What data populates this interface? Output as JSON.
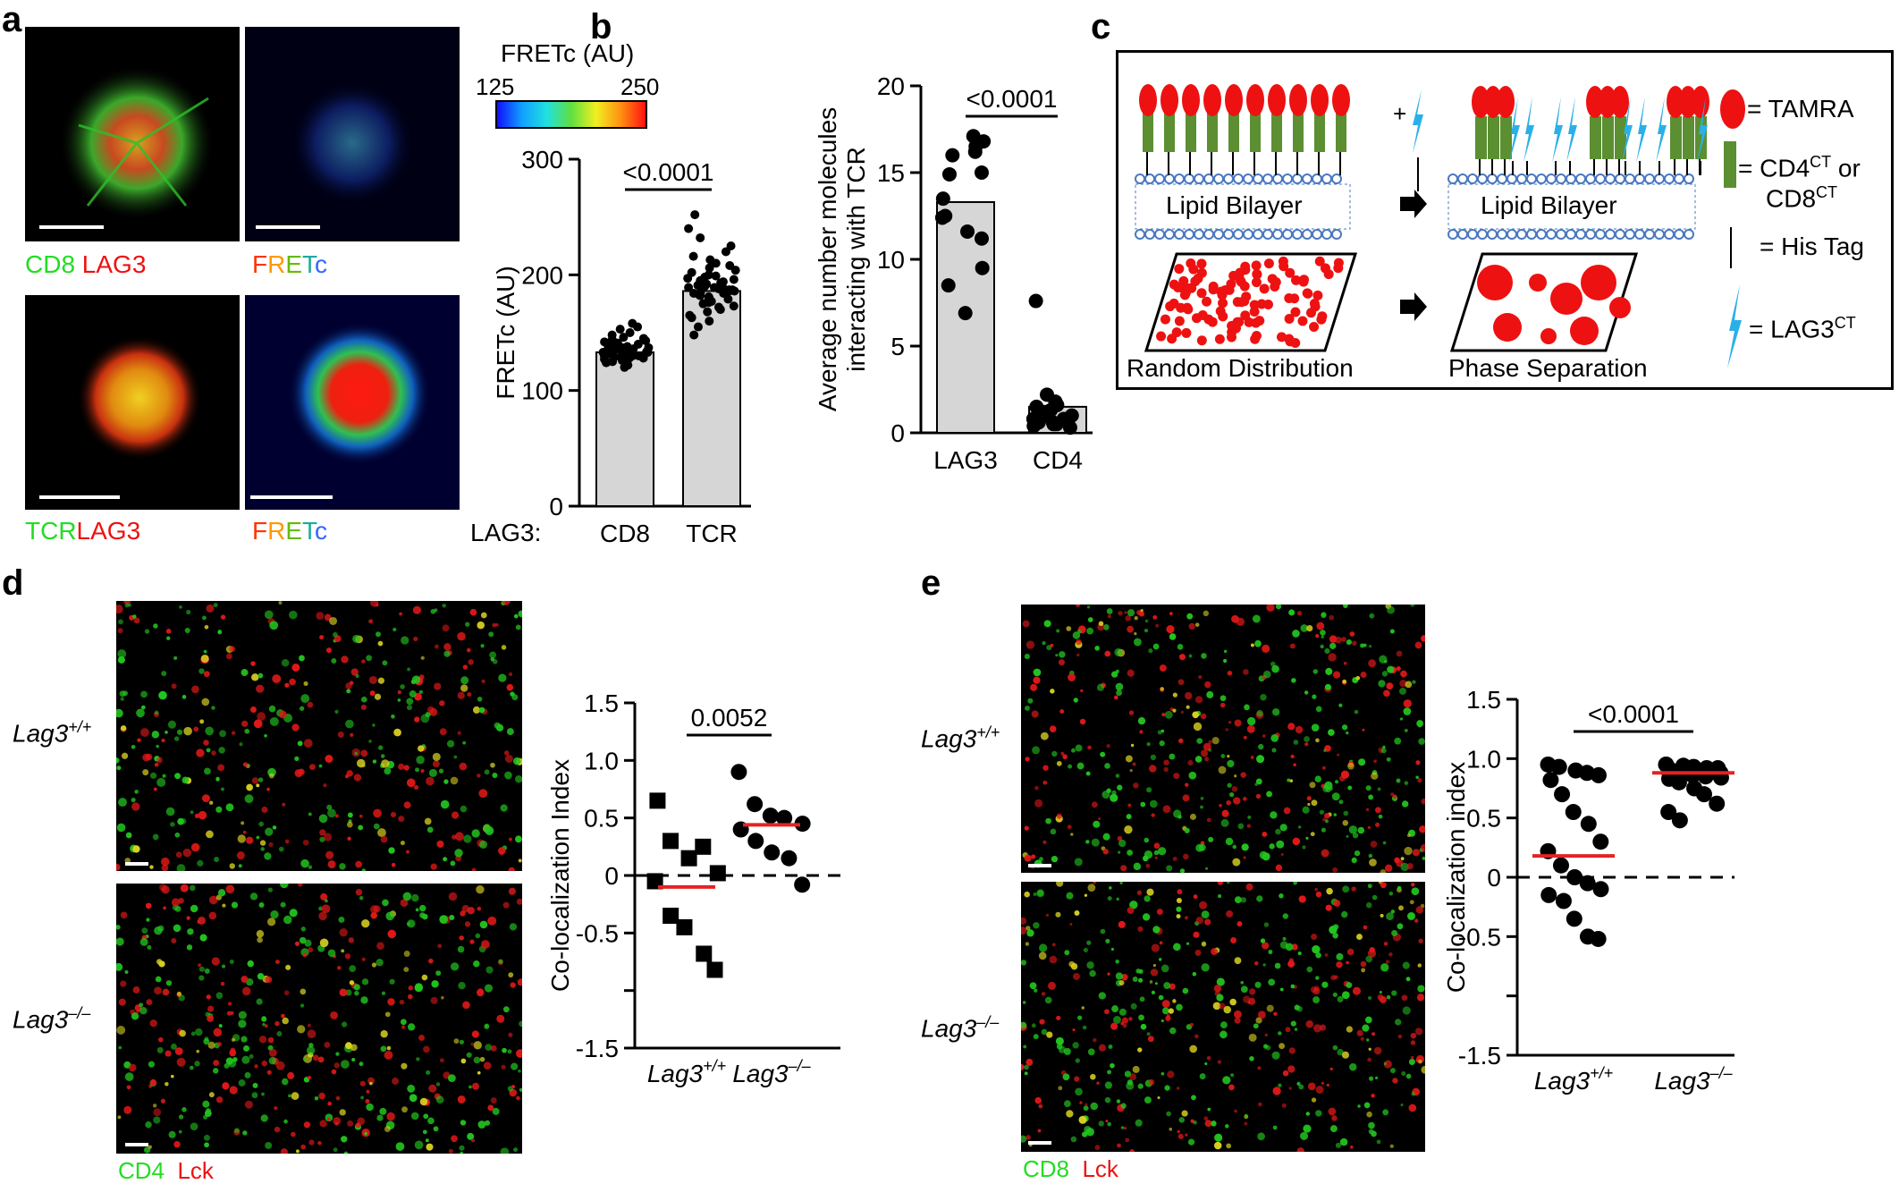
{
  "panels": {
    "a": "a",
    "b": "b",
    "c": "c",
    "d": "d",
    "e": "e"
  },
  "panel_a": {
    "top_left_caption": {
      "green": "CD8",
      "red": "LAG3"
    },
    "bottom_left_caption": {
      "green": "TCR",
      "red": "LAG3"
    },
    "fretc_caption": [
      "F",
      "R",
      "E",
      "T",
      "c"
    ],
    "colorbar": {
      "title": "FRETc (AU)",
      "min": "125",
      "max": "250"
    },
    "colors": {
      "green": "#22dd22",
      "red": "#ee1111",
      "f": "#ff3300",
      "r": "#ff9900",
      "e": "#66bb00",
      "t": "#1faa9f",
      "c": "#3366ff"
    },
    "chart_row_label": "LAG3:"
  },
  "panel_c": {
    "bilayer_label_left": "Lipid Bilayer",
    "bilayer_label_right": "Lipid Bilayer",
    "plus": "+",
    "random_label": "Random Distribution",
    "phase_label": "Phase Separation",
    "legend": {
      "tamra": "= TAMRA",
      "cd4ct_a": "= CD4",
      "ct": "CT",
      "cd4ct_or": " or",
      "cd8ct": "CD8",
      "his": "= His Tag",
      "lag3ct": "= LAG3"
    },
    "colors": {
      "tamra": "#ee1111",
      "cd": "#5b8f32",
      "lag3": "#2ab0e8",
      "bilayer": "#4a78c0"
    }
  },
  "panel_d": {
    "row1": "Lag3",
    "row1_sup": "+/+",
    "row2": "Lag3",
    "row2_sup": "–/–",
    "caption_green": "CD4",
    "caption_red": "Lck"
  },
  "panel_e": {
    "row1": "Lag3",
    "row1_sup": "+/+",
    "row2": "Lag3",
    "row2_sup": "–/–",
    "caption_green": "CD8",
    "caption_red": "Lck"
  },
  "chart_data": [
    {
      "id": "a-bar",
      "type": "bar",
      "ylabel": "FRETc (AU)",
      "ylim": [
        0,
        300
      ],
      "yticks": [
        "0",
        "100",
        "200",
        "300"
      ],
      "categories": [
        "CD8",
        "TCR"
      ],
      "values": [
        133,
        186
      ],
      "pvalue": "<0.0001",
      "points": [
        [
          120,
          122,
          124,
          125,
          126,
          127,
          127,
          128,
          128,
          129,
          129,
          130,
          130,
          130,
          131,
          131,
          131,
          132,
          132,
          132,
          133,
          133,
          133,
          133,
          134,
          134,
          134,
          135,
          135,
          135,
          136,
          136,
          136,
          137,
          137,
          138,
          138,
          139,
          139,
          140,
          140,
          141,
          142,
          143,
          144,
          145,
          146,
          148,
          150,
          153,
          155,
          158
        ],
        [
          148,
          155,
          160,
          163,
          165,
          168,
          170,
          172,
          173,
          175,
          176,
          177,
          178,
          179,
          180,
          181,
          182,
          183,
          184,
          184,
          185,
          185,
          186,
          186,
          187,
          187,
          188,
          188,
          189,
          189,
          190,
          190,
          191,
          192,
          193,
          194,
          195,
          196,
          197,
          198,
          199,
          200,
          202,
          204,
          206,
          208,
          210,
          213,
          216,
          220,
          225,
          232,
          240,
          252
        ]
      ]
    },
    {
      "id": "b-bar",
      "type": "bar",
      "ylabel": "Average number molecules interacting with TCR",
      "ylim": [
        0,
        20
      ],
      "yticks": [
        "0",
        "5",
        "10",
        "15",
        "20"
      ],
      "categories": [
        "LAG3",
        "CD4"
      ],
      "values": [
        13.3,
        1.5
      ],
      "pvalue": "<0.0001",
      "points": [
        [
          16.5,
          16.2,
          17.1,
          16.8,
          16.0,
          15.0,
          14.9,
          13.5,
          12.5,
          12.4,
          11.6,
          11.2,
          9.5,
          8.5,
          6.9
        ],
        [
          7.6,
          2.2,
          1.6,
          1.5,
          1.3,
          1.2,
          1.1,
          1.0,
          0.9,
          0.9,
          0.8,
          0.8,
          0.7,
          0.6,
          0.6,
          0.5,
          0.5,
          0.4,
          0.3,
          1.8
        ]
      ]
    },
    {
      "id": "d-scatter",
      "type": "scatter",
      "ylabel": "Co-localization Index",
      "ylim": [
        -1.5,
        1.5
      ],
      "yticks": [
        "-1.5",
        "-0.5",
        "0",
        "0.5",
        "1.0",
        "1.5"
      ],
      "ytick_values": [
        -1.5,
        -0.5,
        0,
        0.5,
        1.0,
        1.5
      ],
      "categories": [
        "Lag3+/+",
        "Lag3–/–"
      ],
      "medians": [
        -0.1,
        0.44
      ],
      "pvalue": "0.0052",
      "series": [
        {
          "marker": "square",
          "values": [
            0.65,
            0.3,
            0.15,
            0.25,
            0.02,
            -0.05,
            -0.35,
            -0.45,
            -0.68,
            -0.82
          ]
        },
        {
          "marker": "circle",
          "values": [
            0.9,
            0.62,
            0.52,
            0.5,
            0.45,
            0.4,
            0.3,
            0.2,
            0.15,
            -0.08
          ]
        }
      ]
    },
    {
      "id": "e-scatter",
      "type": "scatter",
      "ylabel": "Co-localization index",
      "ylim": [
        -1.5,
        1.5
      ],
      "yticks": [
        "-1.5",
        "-0.5",
        "0",
        "0.5",
        "1.0",
        "1.5"
      ],
      "ytick_values": [
        -1.5,
        -0.5,
        0,
        0.5,
        1.0,
        1.5
      ],
      "categories": [
        "Lag3+/+",
        "Lag3–/–"
      ],
      "medians": [
        0.18,
        0.88
      ],
      "pvalue": "<0.0001",
      "series": [
        {
          "marker": "circle",
          "values": [
            0.95,
            0.93,
            0.9,
            0.88,
            0.86,
            0.82,
            0.7,
            0.55,
            0.45,
            0.3,
            0.22,
            0.1,
            0.0,
            -0.05,
            -0.1,
            -0.15,
            -0.2,
            -0.35,
            -0.5,
            -0.52
          ]
        },
        {
          "marker": "circle",
          "values": [
            0.95,
            0.94,
            0.93,
            0.92,
            0.92,
            0.91,
            0.9,
            0.9,
            0.89,
            0.88,
            0.88,
            0.87,
            0.86,
            0.85,
            0.84,
            0.83,
            0.8,
            0.75,
            0.7,
            0.62,
            0.55,
            0.48
          ]
        }
      ]
    }
  ]
}
